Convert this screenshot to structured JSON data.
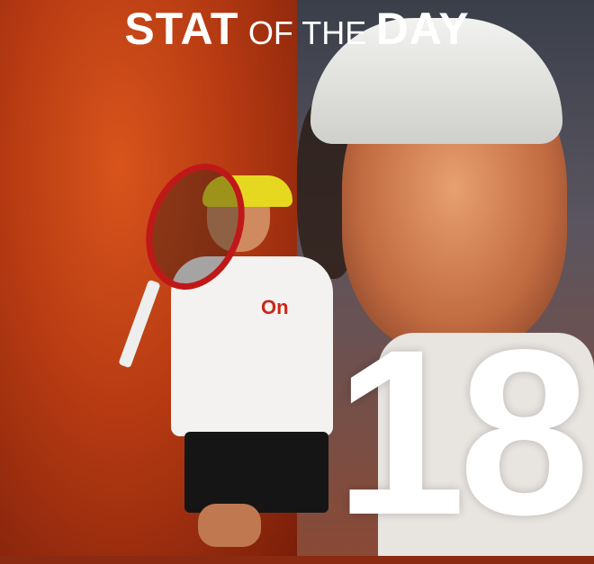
{
  "header": {
    "title_part1": "STAT",
    "title_part2": "OF THE",
    "title_part3": "DAY"
  },
  "stat": {
    "value": "18"
  },
  "brand": {
    "logo_text": "On"
  },
  "colors": {
    "left_background": "#c0401a",
    "right_background": "#4a4a55",
    "text": "#ffffff",
    "logo": "#c8281c",
    "cap_left_player": "#e6d820"
  }
}
